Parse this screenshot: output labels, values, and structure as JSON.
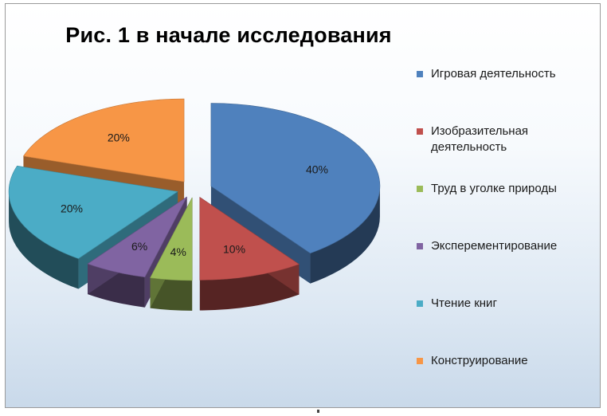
{
  "chart_data": {
    "type": "pie",
    "title": "Рис. 1 в начале исследования",
    "categories": [
      "Игровая деятельность",
      "Изобразительная деятельность",
      "Труд в уголке природы",
      "Эксперементирование",
      "Чтение книг",
      "Конструирование"
    ],
    "values": [
      40,
      10,
      4,
      6,
      20,
      20
    ],
    "value_labels": [
      "40%",
      "10%",
      "4%",
      "6%",
      "20%",
      "20%"
    ],
    "colors": [
      "#4F81BD",
      "#C0504D",
      "#9BBB59",
      "#8064A2",
      "#4BACC6",
      "#F79646"
    ],
    "exploded": true,
    "three_d": true,
    "legend_position": "right"
  }
}
